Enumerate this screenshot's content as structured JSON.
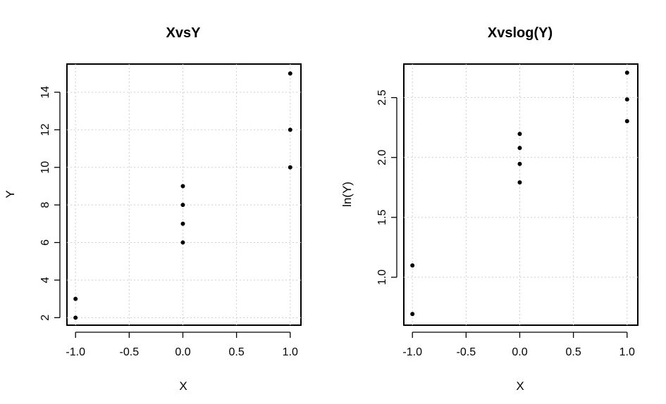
{
  "chart_data": [
    {
      "type": "scatter",
      "title": "XvsY",
      "xlabel": "X",
      "ylabel": "Y",
      "xlim": [
        -1.08,
        1.1
      ],
      "ylim": [
        1.6,
        15.5
      ],
      "x_ticks": [
        -1.0,
        -0.5,
        0.0,
        0.5,
        1.0
      ],
      "x_tick_labels": [
        "-1.0",
        "-0.5",
        "0.0",
        "0.5",
        "1.0"
      ],
      "y_ticks": [
        2,
        4,
        6,
        8,
        10,
        12,
        14
      ],
      "y_tick_labels": [
        "2",
        "4",
        "6",
        "8",
        "10",
        "12",
        "14"
      ],
      "grid": true,
      "points": [
        {
          "x": -1,
          "y": 2
        },
        {
          "x": -1,
          "y": 3
        },
        {
          "x": 0,
          "y": 6
        },
        {
          "x": 0,
          "y": 7
        },
        {
          "x": 0,
          "y": 8
        },
        {
          "x": 0,
          "y": 9
        },
        {
          "x": 1,
          "y": 10
        },
        {
          "x": 1,
          "y": 12
        },
        {
          "x": 1,
          "y": 15
        }
      ]
    },
    {
      "type": "scatter",
      "title": "Xvslog(Y)",
      "xlabel": "X",
      "ylabel": "ln(Y)",
      "xlim": [
        -1.08,
        1.1
      ],
      "ylim": [
        0.6,
        2.78
      ],
      "x_ticks": [
        -1.0,
        -0.5,
        0.0,
        0.5,
        1.0
      ],
      "x_tick_labels": [
        "-1.0",
        "-0.5",
        "0.0",
        "0.5",
        "1.0"
      ],
      "y_ticks": [
        1.0,
        1.5,
        2.0,
        2.5
      ],
      "y_tick_labels": [
        "1.0",
        "1.5",
        "2.0",
        "2.5"
      ],
      "grid": true,
      "points": [
        {
          "x": -1,
          "y": 0.693
        },
        {
          "x": -1,
          "y": 1.099
        },
        {
          "x": 0,
          "y": 1.792
        },
        {
          "x": 0,
          "y": 1.946
        },
        {
          "x": 0,
          "y": 2.079
        },
        {
          "x": 0,
          "y": 2.197
        },
        {
          "x": 1,
          "y": 2.303
        },
        {
          "x": 1,
          "y": 2.485
        },
        {
          "x": 1,
          "y": 2.708
        }
      ]
    }
  ]
}
